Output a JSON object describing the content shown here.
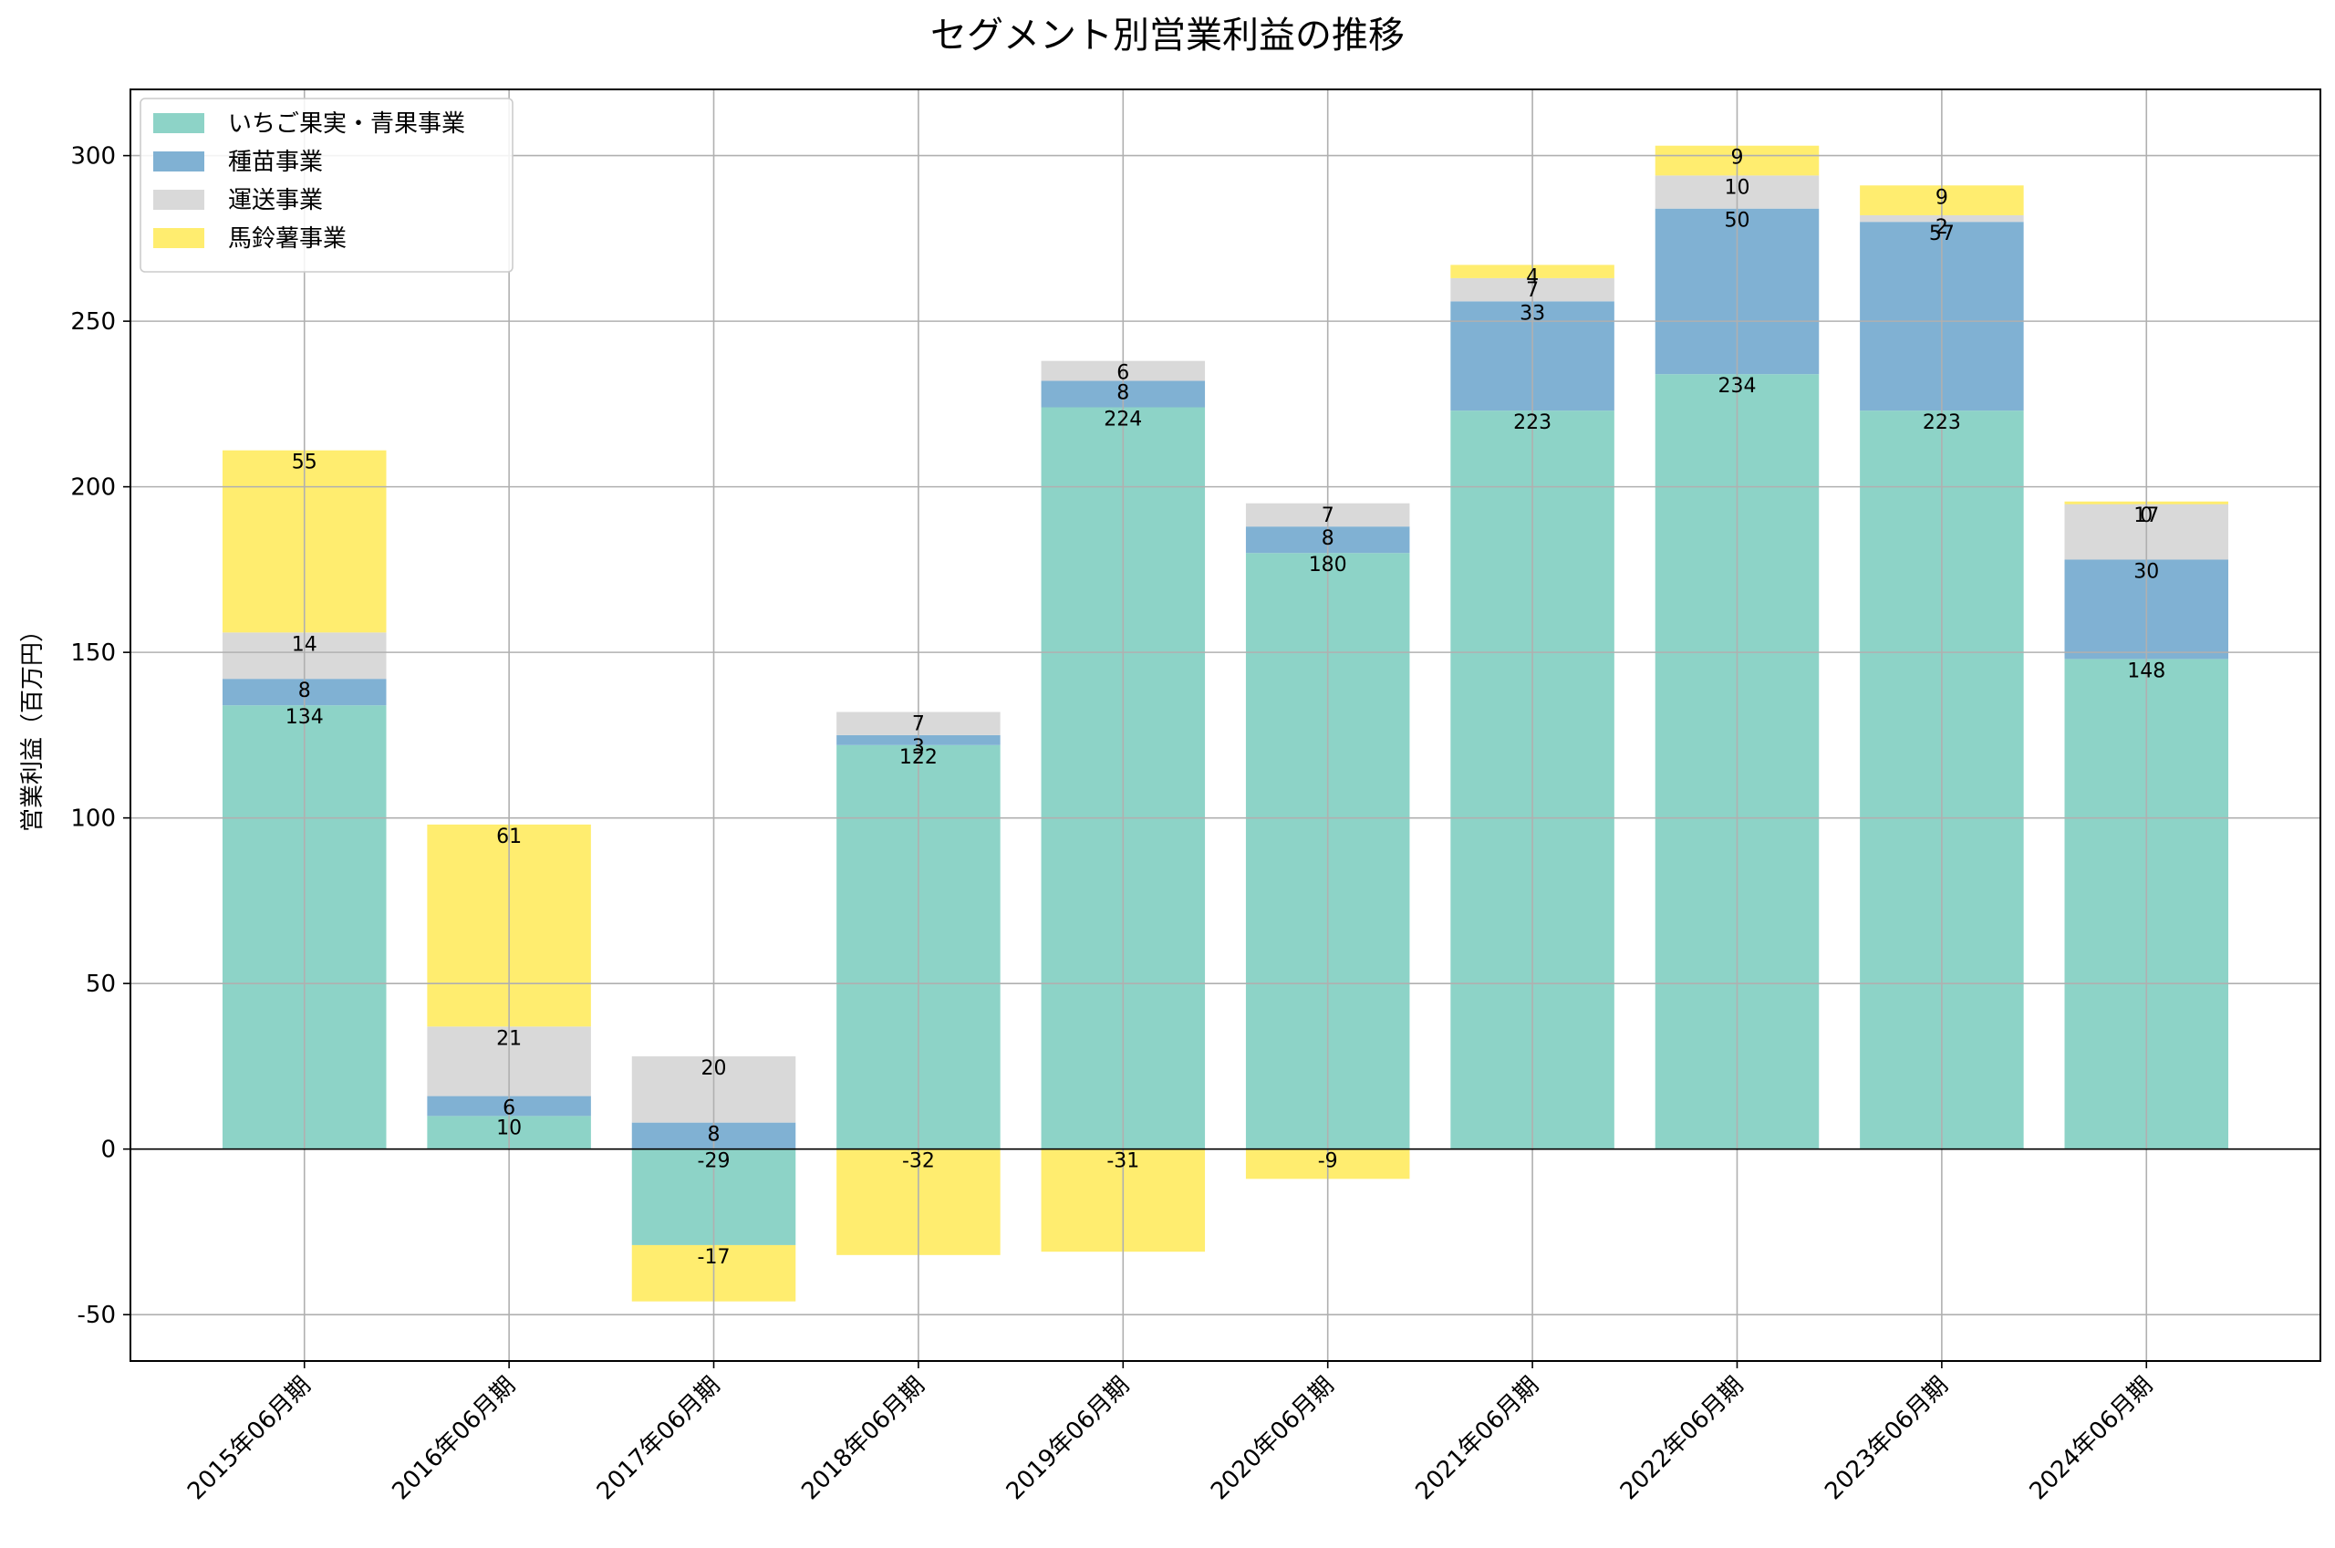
{
  "chart_data": {
    "type": "bar",
    "stacked": true,
    "title": "セグメント別営業利益の推移",
    "xlabel": "",
    "ylabel": "営業利益（百万円）",
    "ylim": [
      -64,
      320
    ],
    "yticks": [
      -50,
      0,
      50,
      100,
      150,
      200,
      250,
      300
    ],
    "grid": true,
    "legend_position": "top-left",
    "categories": [
      "2015年06月期",
      "2016年06月期",
      "2017年06月期",
      "2018年06月期",
      "2019年06月期",
      "2020年06月期",
      "2021年06月期",
      "2022年06月期",
      "2023年06月期",
      "2024年06月期"
    ],
    "series": [
      {
        "name": "いちご果実・青果事業",
        "color": "#8dd3c7",
        "values": [
          134,
          10,
          -29,
          122,
          224,
          180,
          223,
          234,
          223,
          148
        ]
      },
      {
        "name": "種苗事業",
        "color": "#80b1d3",
        "values": [
          8,
          6,
          8,
          3,
          8,
          8,
          33,
          50,
          57,
          30
        ]
      },
      {
        "name": "運送事業",
        "color": "#d9d9d9",
        "values": [
          14,
          21,
          20,
          7,
          6,
          7,
          7,
          10,
          2,
          17
        ]
      },
      {
        "name": "馬鈴薯事業",
        "color": "#ffed6f",
        "values": [
          55,
          61,
          -17,
          -32,
          -31,
          -9,
          4,
          9,
          9,
          0
        ]
      }
    ]
  }
}
